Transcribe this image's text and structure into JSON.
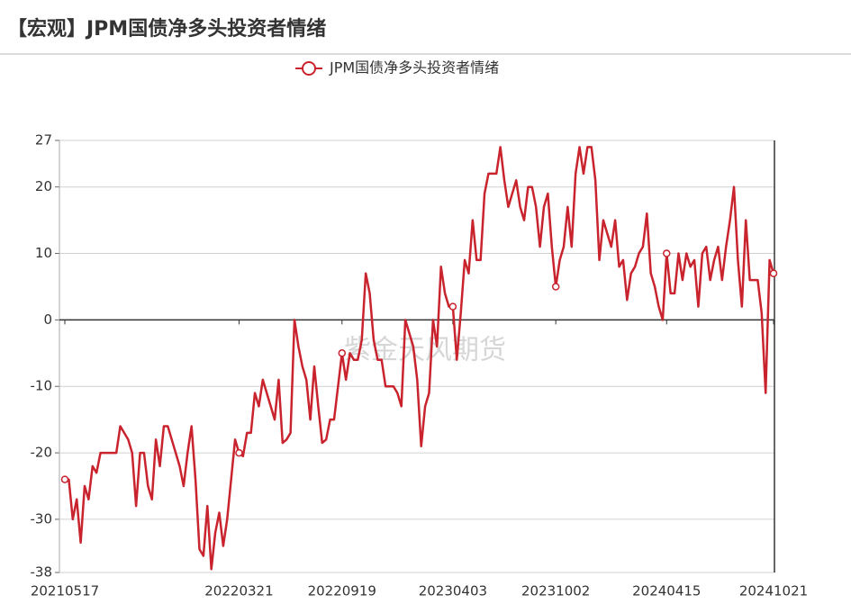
{
  "chart_data": {
    "type": "line",
    "title": "【宏观】JPM国债净多头投资者情绪",
    "watermark": "紫金天风期货",
    "categories": [
      "20210517",
      null,
      null,
      null,
      null,
      null,
      null,
      null,
      null,
      null,
      null,
      null,
      null,
      null,
      null,
      null,
      null,
      null,
      null,
      null,
      null,
      null,
      null,
      null,
      null,
      null,
      null,
      null,
      null,
      null,
      null,
      null,
      null,
      null,
      null,
      null,
      null,
      null,
      null,
      null,
      null,
      null,
      null,
      null,
      "20220321",
      null,
      null,
      null,
      null,
      null,
      null,
      null,
      null,
      null,
      null,
      null,
      null,
      null,
      null,
      null,
      null,
      null,
      null,
      null,
      null,
      null,
      null,
      null,
      null,
      null,
      "20220919",
      null,
      null,
      null,
      null,
      null,
      null,
      null,
      null,
      null,
      null,
      null,
      null,
      null,
      null,
      null,
      null,
      null,
      null,
      null,
      null,
      null,
      null,
      null,
      null,
      null,
      null,
      null,
      "20230403",
      null,
      null,
      null,
      null,
      null,
      null,
      null,
      null,
      null,
      null,
      null,
      null,
      null,
      null,
      null,
      null,
      null,
      null,
      null,
      null,
      null,
      null,
      null,
      null,
      null,
      "20231002",
      null,
      null,
      null,
      null,
      null,
      null,
      null,
      null,
      null,
      null,
      null,
      null,
      null,
      null,
      null,
      null,
      null,
      null,
      null,
      null,
      null,
      null,
      null,
      null,
      null,
      null,
      null,
      "20240415",
      null,
      null,
      null,
      null,
      null,
      null,
      null,
      null,
      null,
      null,
      null,
      null,
      null,
      null,
      null,
      null,
      null,
      null,
      null,
      null,
      null,
      null,
      null,
      null,
      null,
      null,
      "20241021"
    ],
    "series": [
      {
        "name": "JPM国债净多头投资者情绪",
        "color": "#c9232d",
        "values": [
          -24,
          -24,
          -30,
          -27,
          -33.5,
          -25,
          -27,
          -22,
          -23,
          -20,
          -20,
          -20,
          -20,
          -20,
          -16,
          -17,
          -18,
          -20,
          -28,
          -20,
          -20,
          -25,
          -27,
          -18,
          -22,
          -16,
          -16,
          -18,
          -20,
          -22,
          -25,
          -20,
          -16,
          -24,
          -34.5,
          -35.5,
          -28,
          -37.5,
          -32,
          -29,
          -34,
          -30,
          -24,
          -18,
          -20,
          -20.5,
          -17,
          -17,
          -11,
          -13,
          -9,
          -11,
          -13,
          -15,
          -9,
          -18.5,
          -18,
          -17,
          0,
          -4,
          -7,
          -9,
          -15,
          -7,
          -13,
          -18.5,
          -18,
          -15,
          -15,
          -10,
          -5,
          -9,
          -5,
          -6,
          -6,
          -3,
          7,
          4,
          -3,
          -6,
          -6,
          -10,
          -10,
          -10,
          -11,
          -13,
          0,
          -2,
          -4,
          -9,
          -19,
          -13,
          -11,
          0,
          -4,
          8,
          4,
          2,
          2,
          -6,
          1,
          9,
          7,
          15,
          9,
          9,
          19,
          22,
          22,
          22,
          26,
          21,
          17,
          19,
          21,
          17,
          15,
          20,
          20,
          17,
          11,
          17,
          19,
          11,
          5,
          9,
          11,
          17,
          11,
          22,
          26,
          22,
          26,
          26,
          21,
          9,
          15,
          13,
          11,
          15,
          8,
          9,
          3,
          7,
          8,
          10,
          11,
          16,
          7,
          5,
          2,
          0,
          10,
          4,
          4,
          10,
          6,
          10,
          8,
          9,
          2,
          10,
          11,
          6,
          9,
          11,
          6,
          11,
          15,
          20,
          9,
          2,
          15,
          6,
          6,
          6,
          1,
          -11,
          9,
          7
        ]
      }
    ],
    "ylim": [
      -38,
      27
    ],
    "yticks": [
      -38,
      -30,
      -20,
      -10,
      0,
      10,
      20,
      27
    ],
    "grid": true,
    "legend": "top"
  }
}
